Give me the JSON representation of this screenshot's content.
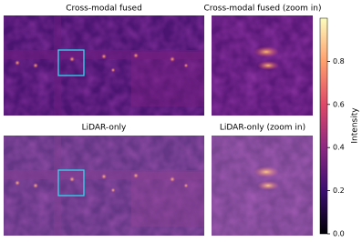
{
  "chart_data": {
    "type": "image-grid",
    "panels": [
      {
        "title": "Cross-modal fused"
      },
      {
        "title": "Cross-modal fused (zoom in)"
      },
      {
        "title": "LiDAR-only"
      },
      {
        "title": "LiDAR-only (zoom in)"
      }
    ],
    "colorbar": {
      "label": "Intensity",
      "ylim": [
        0,
        1
      ],
      "yticks": [
        {
          "value": 0,
          "label": "0.0"
        },
        {
          "value": 0.2,
          "label": "0.2"
        },
        {
          "value": 0.4,
          "label": "0.4"
        },
        {
          "value": 0.6,
          "label": "0.6"
        },
        {
          "value": 0.8,
          "label": "0.8"
        }
      ]
    }
  }
}
